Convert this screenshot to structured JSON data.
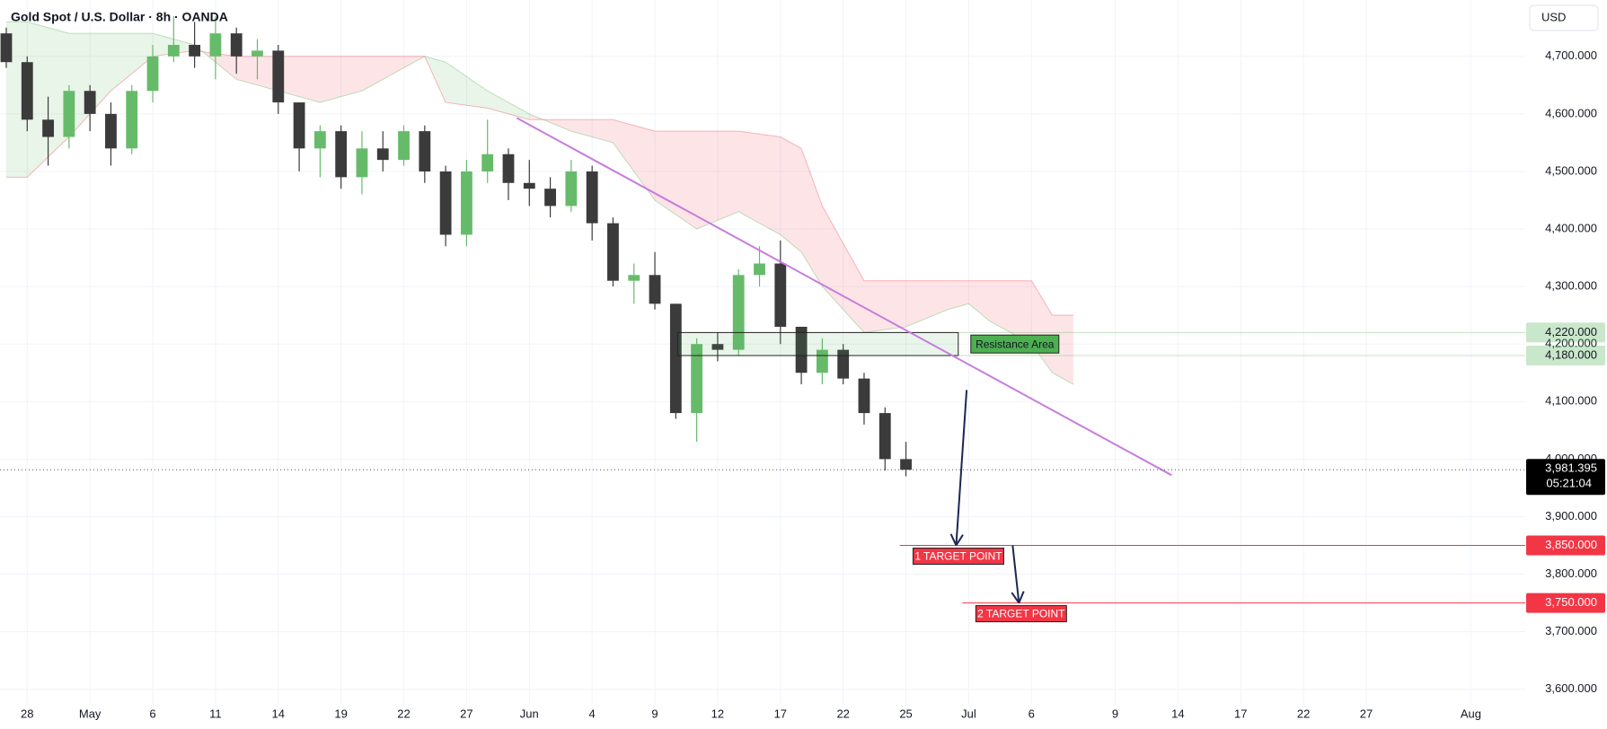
{
  "chart_data": {
    "type": "candlestick",
    "title": "Gold Spot / U.S. Dollar · 8h · OANDA",
    "currency": "USD",
    "x": [
      -1,
      0,
      1,
      2,
      3,
      4,
      5,
      6,
      7,
      8,
      9,
      10,
      11,
      12,
      13,
      14,
      15,
      16,
      17,
      18,
      19,
      20,
      21,
      22,
      23,
      24,
      25,
      26,
      27,
      28,
      29,
      30,
      31,
      32,
      33,
      34,
      35,
      36,
      37,
      38,
      39,
      40,
      41,
      42
    ],
    "open": [
      4740,
      4690,
      4590,
      4560,
      4640,
      4600,
      4540,
      4640,
      4700,
      4720,
      4700,
      4740,
      4700,
      4710,
      4620,
      4540,
      4570,
      4490,
      4540,
      4520,
      4570,
      4500,
      4390,
      4500,
      4530,
      4480,
      4470,
      4440,
      4500,
      4410,
      4310,
      4320,
      4270,
      4080,
      4200,
      4190,
      4320,
      4340,
      4230,
      4150,
      4190,
      4140,
      4080,
      4000
    ],
    "high": [
      4750,
      4700,
      4630,
      4650,
      4650,
      4620,
      4650,
      4720,
      4770,
      4760,
      4770,
      4750,
      4730,
      4720,
      4620,
      4580,
      4580,
      4570,
      4570,
      4580,
      4580,
      4510,
      4520,
      4590,
      4540,
      4520,
      4490,
      4520,
      4510,
      4420,
      4340,
      4360,
      4270,
      4210,
      4220,
      4330,
      4370,
      4380,
      4230,
      4210,
      4200,
      4150,
      4090,
      4030
    ],
    "low": [
      4680,
      4570,
      4510,
      4540,
      4570,
      4510,
      4530,
      4620,
      4690,
      4680,
      4660,
      4670,
      4660,
      4600,
      4500,
      4490,
      4470,
      4460,
      4500,
      4510,
      4480,
      4370,
      4370,
      4480,
      4450,
      4440,
      4420,
      4430,
      4380,
      4300,
      4270,
      4260,
      4070,
      4030,
      4170,
      4180,
      4300,
      4200,
      4130,
      4130,
      4130,
      4060,
      3980,
      3970
    ],
    "close": [
      4690,
      4590,
      4560,
      4640,
      4600,
      4540,
      4640,
      4700,
      4720,
      4700,
      4740,
      4700,
      4710,
      4620,
      4540,
      4570,
      4490,
      4540,
      4520,
      4570,
      4500,
      4390,
      4500,
      4530,
      4480,
      4470,
      4440,
      4500,
      4410,
      4310,
      4320,
      4270,
      4080,
      4200,
      4190,
      4320,
      4340,
      4230,
      4150,
      4190,
      4140,
      4080,
      4000,
      3981.395
    ],
    "up_color": "#66bb6a",
    "down_color": "#3b3b3b",
    "xlim": [
      -1.3,
      71.6
    ],
    "xticks": [
      {
        "value": 0,
        "label": "28"
      },
      {
        "value": 3,
        "label": "May"
      },
      {
        "value": 6,
        "label": "6"
      },
      {
        "value": 9,
        "label": "11"
      },
      {
        "value": 12,
        "label": "14"
      },
      {
        "value": 15,
        "label": "19"
      },
      {
        "value": 18,
        "label": "22"
      },
      {
        "value": 21,
        "label": "27"
      },
      {
        "value": 24,
        "label": "Jun"
      },
      {
        "value": 27,
        "label": "4"
      },
      {
        "value": 30,
        "label": "9"
      },
      {
        "value": 33,
        "label": "12"
      },
      {
        "value": 36,
        "label": "17"
      },
      {
        "value": 39,
        "label": "22"
      },
      {
        "value": 42,
        "label": "25"
      },
      {
        "value": 45,
        "label": "Jul"
      },
      {
        "value": 48,
        "label": "6"
      },
      {
        "value": 52,
        "label": "9"
      },
      {
        "value": 55,
        "label": "14"
      },
      {
        "value": 58,
        "label": "17"
      },
      {
        "value": 61,
        "label": "22"
      },
      {
        "value": 64,
        "label": "27"
      },
      {
        "value": 69,
        "label": "Aug"
      }
    ],
    "ylim": [
      3573,
      4798
    ],
    "yticks": [
      {
        "value": 3600,
        "label": "3,600.000"
      },
      {
        "value": 3700,
        "label": "3,700.000"
      },
      {
        "value": 3800,
        "label": "3,800.000"
      },
      {
        "value": 3900,
        "label": "3,900.000"
      },
      {
        "value": 4000,
        "label": "4,000.000"
      },
      {
        "value": 4100,
        "label": "4,100.000"
      },
      {
        "value": 4200,
        "label": "4,200.000"
      },
      {
        "value": 4300,
        "label": "4,300.000"
      },
      {
        "value": 4400,
        "label": "4,400.000"
      },
      {
        "value": 4500,
        "label": "4,500.000"
      },
      {
        "value": 4600,
        "label": "4,600.000"
      },
      {
        "value": 4700,
        "label": "4,700.000"
      }
    ],
    "grid": true,
    "cloud": {
      "x": [
        -1,
        0,
        2,
        4,
        6,
        8,
        10,
        12,
        14,
        16,
        18,
        19,
        20,
        22,
        24,
        26,
        28,
        30,
        32,
        34,
        36,
        37,
        38,
        40,
        42,
        44,
        45,
        46,
        48,
        49,
        50
      ],
      "span_a": [
        4760,
        4760,
        4740,
        4740,
        4740,
        4720,
        4660,
        4640,
        4620,
        4640,
        4680,
        4700,
        4690,
        4640,
        4600,
        4570,
        4550,
        4450,
        4400,
        4430,
        4390,
        4360,
        4300,
        4220,
        4230,
        4260,
        4270,
        4240,
        4200,
        4150,
        4130
      ],
      "span_b": [
        4490,
        4490,
        4560,
        4640,
        4700,
        4710,
        4700,
        4700,
        4700,
        4700,
        4700,
        4700,
        4620,
        4610,
        4590,
        4590,
        4590,
        4570,
        4570,
        4570,
        4560,
        4540,
        4440,
        4310,
        4310,
        4310,
        4310,
        4310,
        4310,
        4250,
        4250
      ],
      "up_color": "#4caf50",
      "down_color": "#f23645"
    },
    "trendline": {
      "x": [
        23.4,
        54.7
      ],
      "y": [
        4593,
        3972
      ],
      "color": "#c77ddb"
    },
    "resistance_area": {
      "label": "Resistance Area",
      "x": [
        31.1,
        44.5
      ],
      "y": [
        4180,
        4220
      ],
      "color": "#4caf50"
    },
    "levels": [
      {
        "value": 4220,
        "label": "4,220.000",
        "x_start": 44.5,
        "color": "#4caf50"
      },
      {
        "value": 4180,
        "label": "4,180.000",
        "x_start": 44.5,
        "color": "#4caf50"
      }
    ],
    "targets": [
      {
        "label": "1 TARGET POINT",
        "value": 3850,
        "price_label": "3,850.000",
        "x_start": 41.7,
        "arrow_x": [
          44.9,
          44.4
        ],
        "arrow_y": [
          4120,
          3850
        ]
      },
      {
        "label": "2 TARGET POINT",
        "value": 3750,
        "price_label": "3,750.000",
        "x_start": 44.7,
        "arrow_x": [
          47.1,
          47.4
        ],
        "arrow_y": [
          3850,
          3750
        ]
      }
    ],
    "target_color": "#f23645",
    "arrow_color": "#1c2752",
    "last_price": {
      "value": 3981.395,
      "label": "3,981.395",
      "countdown": "05:21:04"
    }
  }
}
